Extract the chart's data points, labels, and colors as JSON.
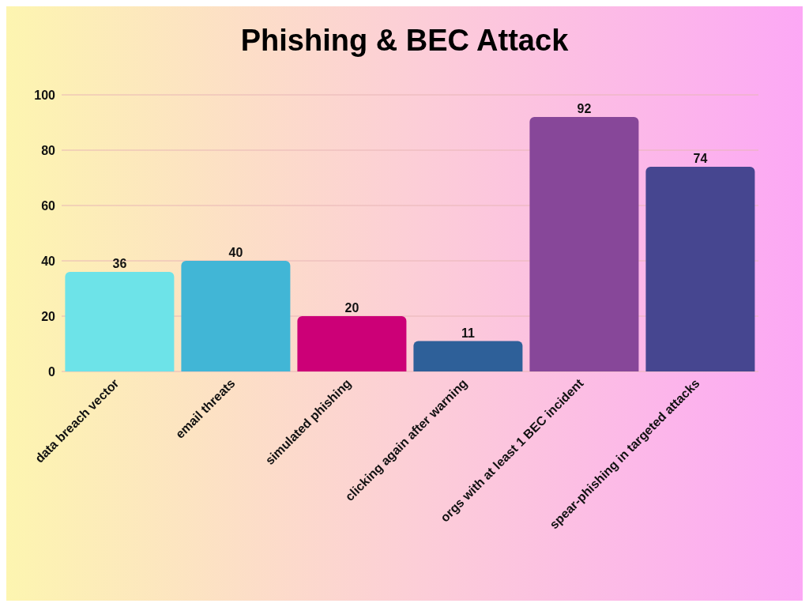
{
  "chart_data": {
    "type": "bar",
    "title": "Phishing & BEC Attack",
    "categories": [
      "data breach vector",
      "email threats",
      "simulated phishing",
      "clicking again after warning",
      "orgs with at least 1 BEC incident",
      "spear-phishing in targeted attacks"
    ],
    "values": [
      36,
      40,
      20,
      11,
      92,
      74
    ],
    "colors": [
      "#6de3e8",
      "#41b6d6",
      "#cc0077",
      "#2e6099",
      "#874799",
      "#464690"
    ],
    "ylim": [
      0,
      100
    ],
    "yticks": [
      0,
      20,
      40,
      60,
      80,
      100
    ],
    "grid": "y",
    "data_labels": true
  }
}
